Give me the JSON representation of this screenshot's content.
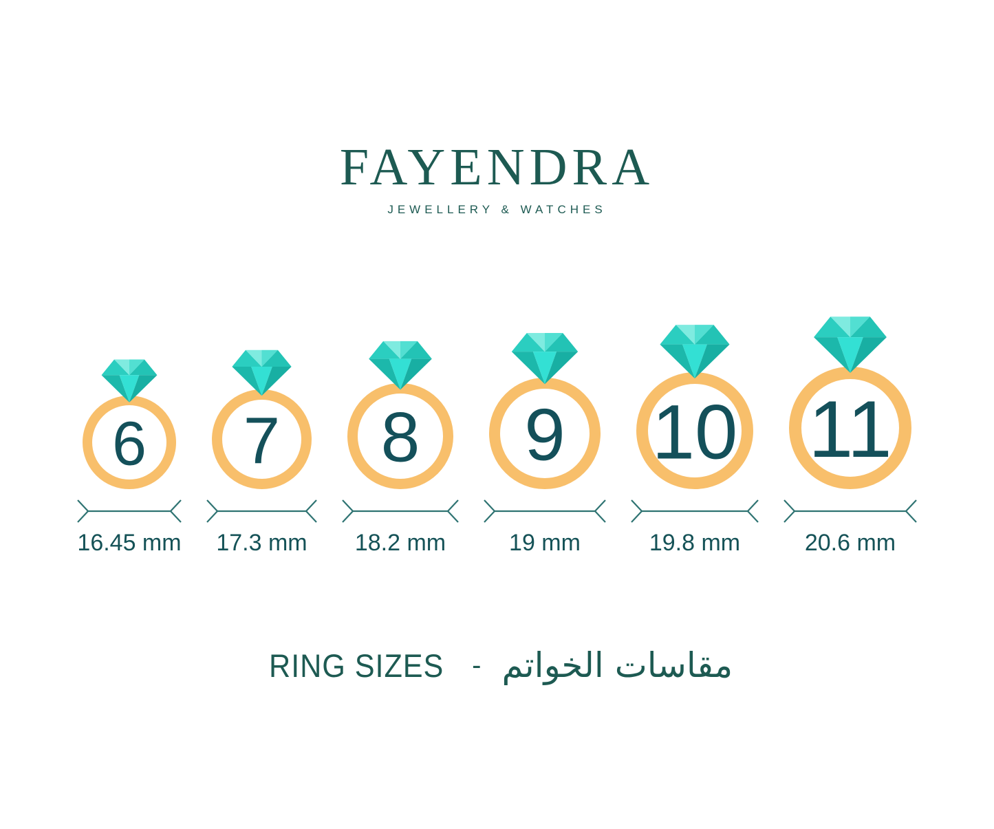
{
  "logo": {
    "title": "FAYENDRA",
    "subtitle": "JEWELLERY & WATCHES"
  },
  "rings": [
    {
      "size": "6",
      "diameter_mm": 16.45,
      "label": "16.45 mm"
    },
    {
      "size": "7",
      "diameter_mm": 17.3,
      "label": "17.3 mm"
    },
    {
      "size": "8",
      "diameter_mm": 18.2,
      "label": "18.2 mm"
    },
    {
      "size": "9",
      "diameter_mm": 19.0,
      "label": "19 mm"
    },
    {
      "size": "10",
      "diameter_mm": 19.8,
      "label": "19.8 mm"
    },
    {
      "size": "11",
      "diameter_mm": 20.6,
      "label": "20.6 mm"
    }
  ],
  "footer": {
    "title_en": "RING SIZES",
    "separator": "-",
    "title_ar": "مقاسات الخواتم"
  },
  "colors": {
    "logo_teal": "#1D5A52",
    "number_teal": "#14505A",
    "label_teal": "#155257",
    "arrow_teal": "#2E7372",
    "band_orange": "#F8BF6B",
    "diamond_crown_left": "#2BCEC0",
    "diamond_crown_pale": "#7FEBE0",
    "diamond_crown_light": "#52DFD2",
    "diamond_crown_right": "#23C3B5",
    "diamond_pavilion_side": "#1CB8AB",
    "diamond_pavilion_center": "#33E0D4",
    "diamond_pavilion_right": "#18AFA3"
  }
}
